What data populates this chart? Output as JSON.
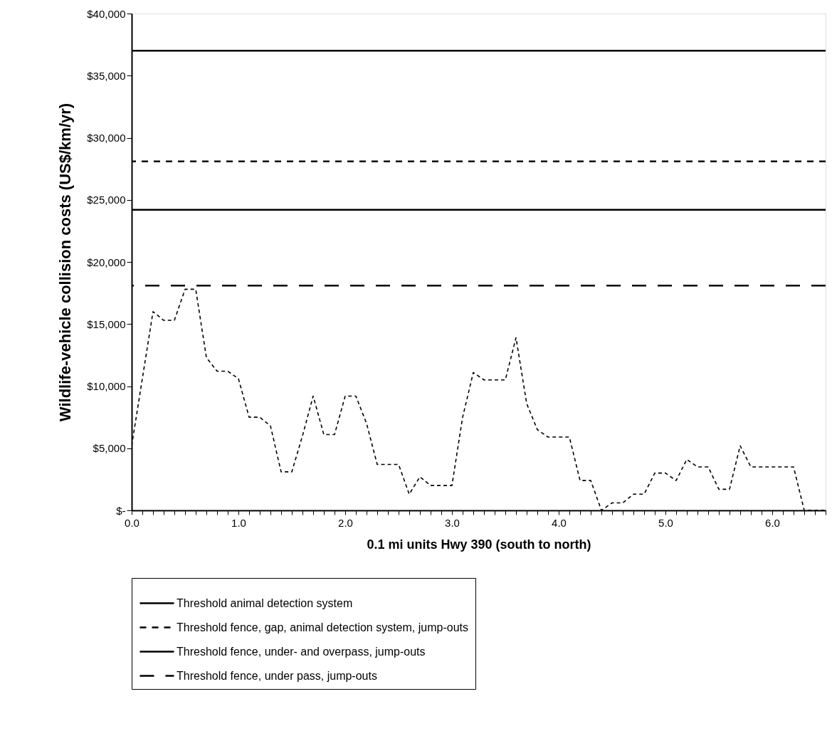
{
  "chart_data": {
    "type": "line",
    "xlabel": "0.1 mi units Hwy 390 (south to north)",
    "ylabel": "Wildlife-vehicle collision costs (US$/km/yr)",
    "x": [
      0.0,
      0.1,
      0.2,
      0.3,
      0.4,
      0.5,
      0.6,
      0.7,
      0.8,
      0.9,
      1.0,
      1.1,
      1.2,
      1.3,
      1.4,
      1.5,
      1.6,
      1.7,
      1.8,
      1.9,
      2.0,
      2.1,
      2.2,
      2.3,
      2.4,
      2.5,
      2.6,
      2.7,
      2.8,
      2.9,
      3.0,
      3.1,
      3.2,
      3.3,
      3.4,
      3.5,
      3.6,
      3.7,
      3.8,
      3.9,
      4.0,
      4.1,
      4.2,
      4.3,
      4.4,
      4.5,
      4.6,
      4.7,
      4.8,
      4.9,
      5.0,
      5.1,
      5.2,
      5.3,
      5.4,
      5.5,
      5.6,
      5.7,
      5.8,
      5.9,
      6.0,
      6.1,
      6.2,
      6.3,
      6.4,
      6.5
    ],
    "series": [
      {
        "color": "#000000",
        "line_style": "dashed",
        "values": [
          5200,
          10600,
          16000,
          15300,
          15300,
          17800,
          17800,
          12300,
          11200,
          11200,
          10600,
          7500,
          7500,
          6800,
          3100,
          3100,
          6000,
          9200,
          6100,
          6100,
          9200,
          9200,
          7000,
          3700,
          3700,
          3700,
          1300,
          2700,
          2000,
          2000,
          2000,
          7500,
          11100,
          10500,
          10500,
          10500,
          13900,
          8600,
          6500,
          5900,
          5900,
          5900,
          2400,
          2400,
          0,
          600,
          600,
          1300,
          1300,
          3000,
          3000,
          2400,
          4100,
          3500,
          3500,
          1700,
          1700,
          5200,
          3500,
          3500,
          3500,
          3500,
          3500,
          0,
          0,
          0
        ]
      }
    ],
    "xlim": [
      0,
      6.5
    ],
    "ylim": [
      0,
      40000
    ],
    "xticks": [
      {
        "value": 0.0,
        "label": "0.0"
      },
      {
        "value": 0.1,
        "label": null
      },
      {
        "value": 0.2,
        "label": null
      },
      {
        "value": 0.3,
        "label": null
      },
      {
        "value": 0.4,
        "label": null
      },
      {
        "value": 0.5,
        "label": null
      },
      {
        "value": 0.6,
        "label": null
      },
      {
        "value": 0.7,
        "label": null
      },
      {
        "value": 0.8,
        "label": null
      },
      {
        "value": 0.9,
        "label": null
      },
      {
        "value": 1.0,
        "label": "1.0"
      },
      {
        "value": 1.1,
        "label": null
      },
      {
        "value": 1.2,
        "label": null
      },
      {
        "value": 1.3,
        "label": null
      },
      {
        "value": 1.4,
        "label": null
      },
      {
        "value": 1.5,
        "label": null
      },
      {
        "value": 1.6,
        "label": null
      },
      {
        "value": 1.7,
        "label": null
      },
      {
        "value": 1.8,
        "label": null
      },
      {
        "value": 1.9,
        "label": null
      },
      {
        "value": 2.0,
        "label": "2.0"
      },
      {
        "value": 2.1,
        "label": null
      },
      {
        "value": 2.2,
        "label": null
      },
      {
        "value": 2.3,
        "label": null
      },
      {
        "value": 2.4,
        "label": null
      },
      {
        "value": 2.5,
        "label": null
      },
      {
        "value": 2.6,
        "label": null
      },
      {
        "value": 2.7,
        "label": null
      },
      {
        "value": 2.8,
        "label": null
      },
      {
        "value": 2.9,
        "label": null
      },
      {
        "value": 3.0,
        "label": "3.0"
      },
      {
        "value": 3.1,
        "label": null
      },
      {
        "value": 3.2,
        "label": null
      },
      {
        "value": 3.3,
        "label": null
      },
      {
        "value": 3.4,
        "label": null
      },
      {
        "value": 3.5,
        "label": null
      },
      {
        "value": 3.6,
        "label": null
      },
      {
        "value": 3.7,
        "label": null
      },
      {
        "value": 3.8,
        "label": null
      },
      {
        "value": 3.9,
        "label": null
      },
      {
        "value": 4.0,
        "label": "4.0"
      },
      {
        "value": 4.1,
        "label": null
      },
      {
        "value": 4.2,
        "label": null
      },
      {
        "value": 4.3,
        "label": null
      },
      {
        "value": 4.4,
        "label": null
      },
      {
        "value": 4.5,
        "label": null
      },
      {
        "value": 4.6,
        "label": null
      },
      {
        "value": 4.7,
        "label": null
      },
      {
        "value": 4.8,
        "label": null
      },
      {
        "value": 4.9,
        "label": null
      },
      {
        "value": 5.0,
        "label": "5.0"
      },
      {
        "value": 5.1,
        "label": null
      },
      {
        "value": 5.2,
        "label": null
      },
      {
        "value": 5.3,
        "label": null
      },
      {
        "value": 5.4,
        "label": null
      },
      {
        "value": 5.5,
        "label": null
      },
      {
        "value": 5.6,
        "label": null
      },
      {
        "value": 5.7,
        "label": null
      },
      {
        "value": 5.8,
        "label": null
      },
      {
        "value": 5.9,
        "label": null
      },
      {
        "value": 6.0,
        "label": "6.0"
      },
      {
        "value": 6.1,
        "label": null
      },
      {
        "value": 6.2,
        "label": null
      },
      {
        "value": 6.3,
        "label": null
      },
      {
        "value": 6.4,
        "label": null
      },
      {
        "value": 6.5,
        "label": null
      }
    ],
    "yticks": [
      {
        "value": 0,
        "label": "$-"
      },
      {
        "value": 5000,
        "label": "$5,000"
      },
      {
        "value": 10000,
        "label": "$10,000"
      },
      {
        "value": 15000,
        "label": "$15,000"
      },
      {
        "value": 20000,
        "label": "$20,000"
      },
      {
        "value": 25000,
        "label": "$25,000"
      },
      {
        "value": 30000,
        "label": "$30,000"
      },
      {
        "value": 35000,
        "label": "$35,000"
      },
      {
        "value": 40000,
        "label": "$40,000"
      }
    ],
    "ref_lines": [
      {
        "axis": "y",
        "value": 37000,
        "label": "Threshold animal detection system",
        "color": "#000000",
        "line_style": "solid"
      },
      {
        "axis": "y",
        "value": 28100,
        "label": "Threshold fence, gap, animal detection system, jump-outs",
        "color": "#000000",
        "line_style": "dashed"
      },
      {
        "axis": "y",
        "value": 24200,
        "label": "Threshold fence, under- and overpass, jump-outs",
        "color": "#000000",
        "line_style": "solid"
      },
      {
        "axis": "y",
        "value": 18100,
        "label": "Threshold fence, under pass, jump-outs",
        "color": "#000000",
        "line_style": "dashed"
      }
    ],
    "grid": false,
    "legend": "bottom"
  }
}
